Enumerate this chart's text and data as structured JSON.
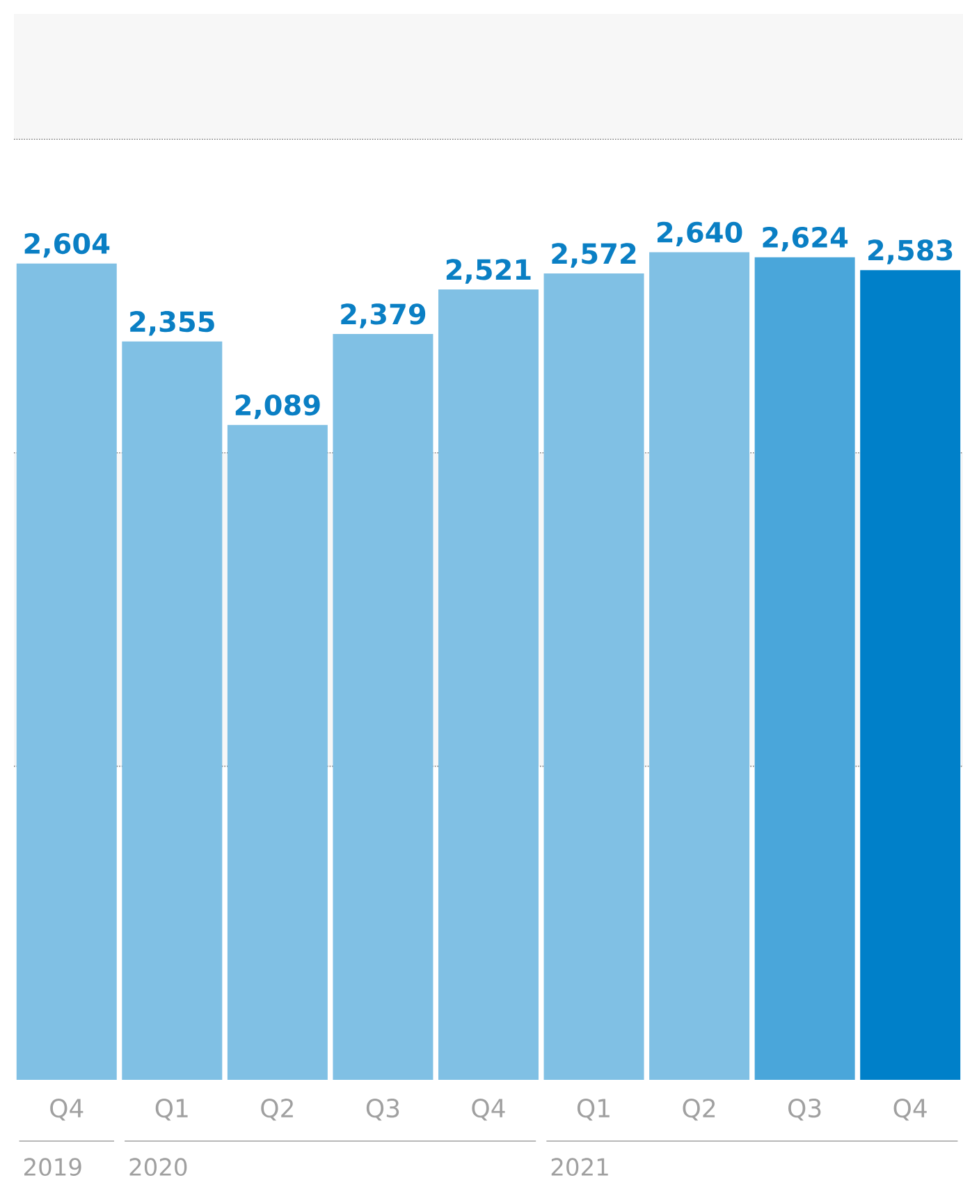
{
  "chart_data": {
    "type": "bar",
    "categories": [
      "Q4",
      "Q1",
      "Q2",
      "Q3",
      "Q4",
      "Q1",
      "Q2",
      "Q3",
      "Q4"
    ],
    "values": [
      2604,
      2355,
      2089,
      2379,
      2521,
      2572,
      2640,
      2624,
      2583
    ],
    "value_labels": [
      "2,604",
      "2,355",
      "2,089",
      "2,379",
      "2,521",
      "2,572",
      "2,640",
      "2,624",
      "2,583"
    ],
    "colors": [
      "#80c0e4",
      "#80c0e4",
      "#80c0e4",
      "#80c0e4",
      "#80c0e4",
      "#80c0e4",
      "#80c0e4",
      "#4aa6da",
      "#0080c9"
    ],
    "ylim": [
      0,
      3400
    ],
    "yticks": [
      {
        "value": 1000,
        "label": null
      },
      {
        "value": 2000,
        "label": null
      },
      {
        "value": 3000,
        "label": null
      }
    ],
    "grid": "y",
    "bands": [
      {
        "axis": "y",
        "from": 1000,
        "to": 2000,
        "color": "#f7f7f7"
      },
      {
        "axis": "y",
        "from": 3000,
        "to": 3400,
        "color": "#f7f7f7"
      }
    ],
    "annotations": [
      "2019",
      "2020",
      "2021"
    ]
  }
}
